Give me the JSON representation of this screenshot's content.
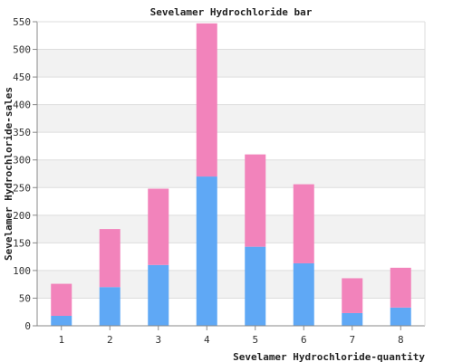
{
  "chart_data": {
    "type": "bar",
    "stacked": true,
    "title": "Sevelamer Hydrochloride bar",
    "xlabel": "Sevelamer Hydrochloride-quantity",
    "ylabel": "Sevelamer Hydrochloride-sales",
    "categories": [
      "1",
      "2",
      "3",
      "4",
      "5",
      "6",
      "7",
      "8"
    ],
    "series": [
      {
        "color": "#5fa8f5",
        "values": [
          18,
          70,
          110,
          270,
          143,
          113,
          23,
          33
        ]
      },
      {
        "color": "#f283bb",
        "values": [
          58,
          105,
          138,
          277,
          167,
          143,
          63,
          72
        ]
      }
    ],
    "ylim": [
      0,
      550
    ],
    "yticks": [
      0,
      50,
      100,
      150,
      200,
      250,
      300,
      350,
      400,
      450,
      500,
      550
    ],
    "grid": true,
    "band_color": "#f2f2f2"
  }
}
